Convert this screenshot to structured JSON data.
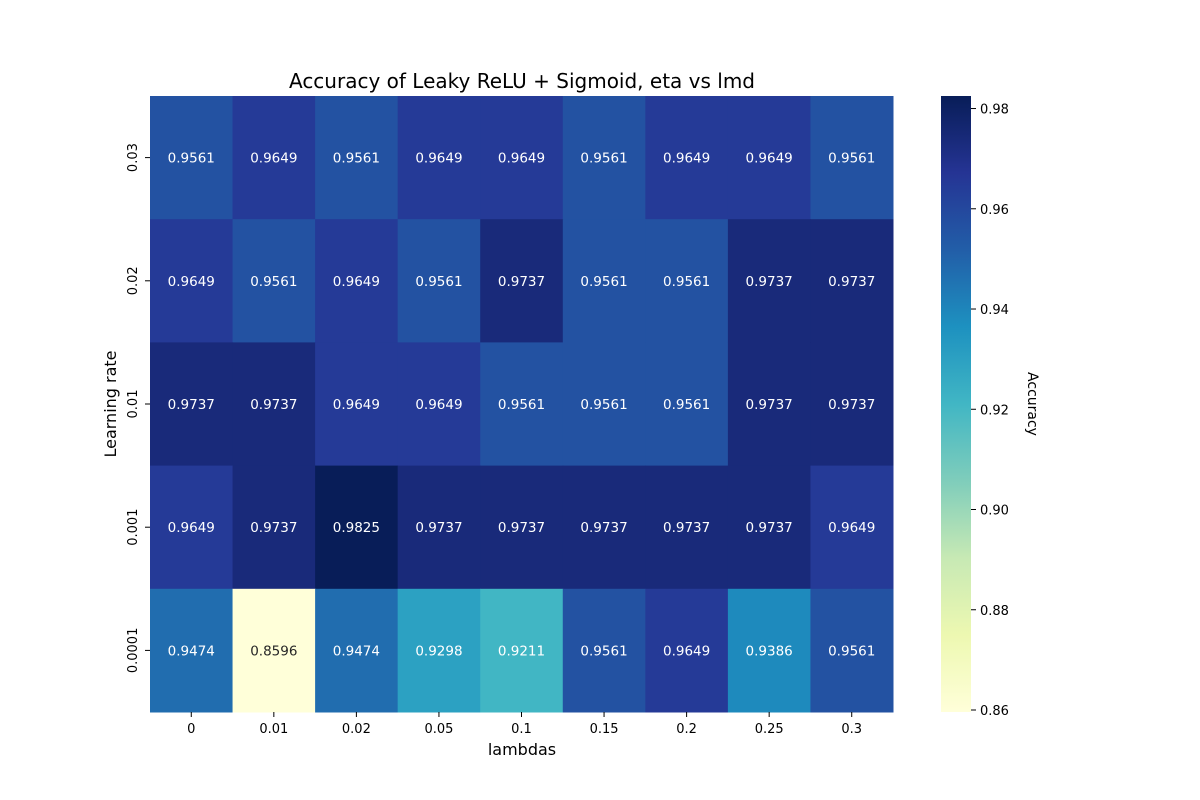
{
  "chart_data": {
    "type": "heatmap",
    "title": "Accuracy of Leaky ReLU + Sigmoid, eta vs lmd",
    "xlabel": "lambdas",
    "ylabel": "Learning rate",
    "x_categories": [
      "0",
      "0.01",
      "0.02",
      "0.05",
      "0.1",
      "0.15",
      "0.2",
      "0.25",
      "0.3"
    ],
    "y_categories": [
      "0.03",
      "0.02",
      "0.01",
      "0.001",
      "0.0001"
    ],
    "values": [
      [
        0.9561,
        0.9649,
        0.9561,
        0.9649,
        0.9649,
        0.9561,
        0.9649,
        0.9649,
        0.9561
      ],
      [
        0.9649,
        0.9561,
        0.9649,
        0.9561,
        0.9737,
        0.9561,
        0.9561,
        0.9737,
        0.9737
      ],
      [
        0.9737,
        0.9737,
        0.9649,
        0.9649,
        0.9561,
        0.9561,
        0.9561,
        0.9737,
        0.9737
      ],
      [
        0.9649,
        0.9737,
        0.9825,
        0.9737,
        0.9737,
        0.9737,
        0.9737,
        0.9737,
        0.9649
      ],
      [
        0.9474,
        0.8596,
        0.9474,
        0.9298,
        0.9211,
        0.9561,
        0.9649,
        0.9386,
        0.9561
      ]
    ],
    "colorbar": {
      "label": "Accuracy",
      "range": [
        0.8596,
        0.9825
      ],
      "ticks": [
        "0.86",
        "0.88",
        "0.90",
        "0.92",
        "0.94",
        "0.96",
        "0.98"
      ],
      "colormap": "YlGnBu"
    }
  }
}
